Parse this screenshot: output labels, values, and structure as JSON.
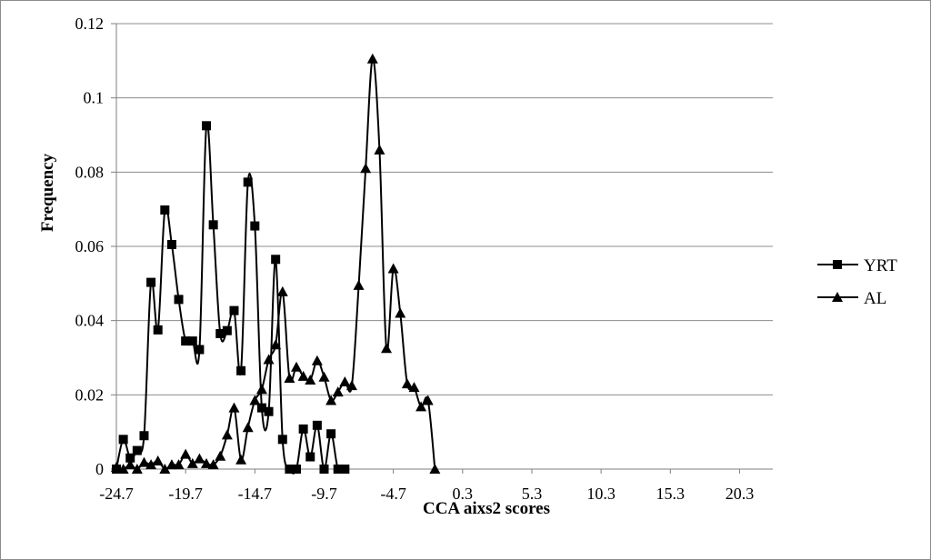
{
  "chart_data": {
    "type": "line",
    "xlabel": "CCA aixs2 scores",
    "ylabel": "Frequency",
    "xlim": [
      -24.7,
      22.7
    ],
    "ylim": [
      0,
      0.12
    ],
    "x_ticks": [
      "-24.7",
      "-19.7",
      "-14.7",
      "-9.7",
      "-4.7",
      "0.3",
      "5.3",
      "10.3",
      "15.3",
      "20.3"
    ],
    "x_tick_values": [
      -24.7,
      -19.7,
      -14.7,
      -9.7,
      -4.7,
      0.3,
      5.3,
      10.3,
      15.3,
      20.3
    ],
    "y_ticks": [
      "0",
      "0.02",
      "0.04",
      "0.06",
      "0.08",
      "0.1",
      "0.12"
    ],
    "y_tick_values": [
      0,
      0.02,
      0.04,
      0.06,
      0.08,
      0.1,
      0.12
    ],
    "grid": "horizontal",
    "legend": "right",
    "series": [
      {
        "name": "YRT",
        "marker": "square",
        "color": "#000000",
        "points": [
          [
            -24.7,
            0.0
          ],
          [
            -24.2,
            0.008
          ],
          [
            -23.7,
            0.003
          ],
          [
            -23.2,
            0.005
          ],
          [
            -22.7,
            0.009
          ],
          [
            -22.2,
            0.0503
          ],
          [
            -21.7,
            0.0375
          ],
          [
            -21.2,
            0.0698
          ],
          [
            -20.7,
            0.0605
          ],
          [
            -20.2,
            0.0457
          ],
          [
            -19.7,
            0.0345
          ],
          [
            -19.2,
            0.0345
          ],
          [
            -18.7,
            0.0322
          ],
          [
            -18.2,
            0.0925
          ],
          [
            -17.7,
            0.0658
          ],
          [
            -17.2,
            0.0365
          ],
          [
            -16.7,
            0.0373
          ],
          [
            -16.2,
            0.0427
          ],
          [
            -15.7,
            0.0265
          ],
          [
            -15.2,
            0.0773
          ],
          [
            -14.7,
            0.0655
          ],
          [
            -14.2,
            0.0165
          ],
          [
            -13.7,
            0.0155
          ],
          [
            -13.2,
            0.0565
          ],
          [
            -12.7,
            0.008
          ],
          [
            -12.2,
            0.0
          ],
          [
            -11.7,
            0.0
          ],
          [
            -11.2,
            0.0108
          ],
          [
            -10.7,
            0.0033
          ],
          [
            -10.2,
            0.0118
          ],
          [
            -9.7,
            0.0
          ],
          [
            -9.2,
            0.0095
          ],
          [
            -8.7,
            0.0
          ],
          [
            -8.2,
            0.0
          ]
        ]
      },
      {
        "name": "AL",
        "marker": "triangle",
        "color": "#000000",
        "points": [
          [
            -24.7,
            0.0005
          ],
          [
            -24.2,
            0.0
          ],
          [
            -23.7,
            0.0012
          ],
          [
            -23.2,
            0.0
          ],
          [
            -22.7,
            0.0018
          ],
          [
            -22.2,
            0.0012
          ],
          [
            -21.7,
            0.0022
          ],
          [
            -21.2,
            0.0
          ],
          [
            -20.7,
            0.0012
          ],
          [
            -20.2,
            0.0012
          ],
          [
            -19.7,
            0.004
          ],
          [
            -19.2,
            0.0015
          ],
          [
            -18.7,
            0.0028
          ],
          [
            -18.2,
            0.0015
          ],
          [
            -17.7,
            0.0012
          ],
          [
            -17.2,
            0.0035
          ],
          [
            -16.7,
            0.0092
          ],
          [
            -16.2,
            0.0165
          ],
          [
            -15.7,
            0.0025
          ],
          [
            -15.2,
            0.0112
          ],
          [
            -14.7,
            0.0185
          ],
          [
            -14.2,
            0.0215
          ],
          [
            -13.7,
            0.0295
          ],
          [
            -13.2,
            0.0335
          ],
          [
            -12.7,
            0.0478
          ],
          [
            -12.2,
            0.0245
          ],
          [
            -11.7,
            0.0275
          ],
          [
            -11.2,
            0.025
          ],
          [
            -10.7,
            0.024
          ],
          [
            -10.2,
            0.0292
          ],
          [
            -9.7,
            0.0248
          ],
          [
            -9.2,
            0.0185
          ],
          [
            -8.7,
            0.0208
          ],
          [
            -8.2,
            0.0235
          ],
          [
            -7.7,
            0.0225
          ],
          [
            -7.2,
            0.0495
          ],
          [
            -6.7,
            0.081
          ],
          [
            -6.2,
            0.1105
          ],
          [
            -5.7,
            0.086
          ],
          [
            -5.2,
            0.0325
          ],
          [
            -4.7,
            0.054
          ],
          [
            -4.2,
            0.042
          ],
          [
            -3.7,
            0.023
          ],
          [
            -3.2,
            0.022
          ],
          [
            -2.7,
            0.0168
          ],
          [
            -2.2,
            0.0185
          ],
          [
            -1.7,
            0.0
          ]
        ]
      }
    ]
  }
}
